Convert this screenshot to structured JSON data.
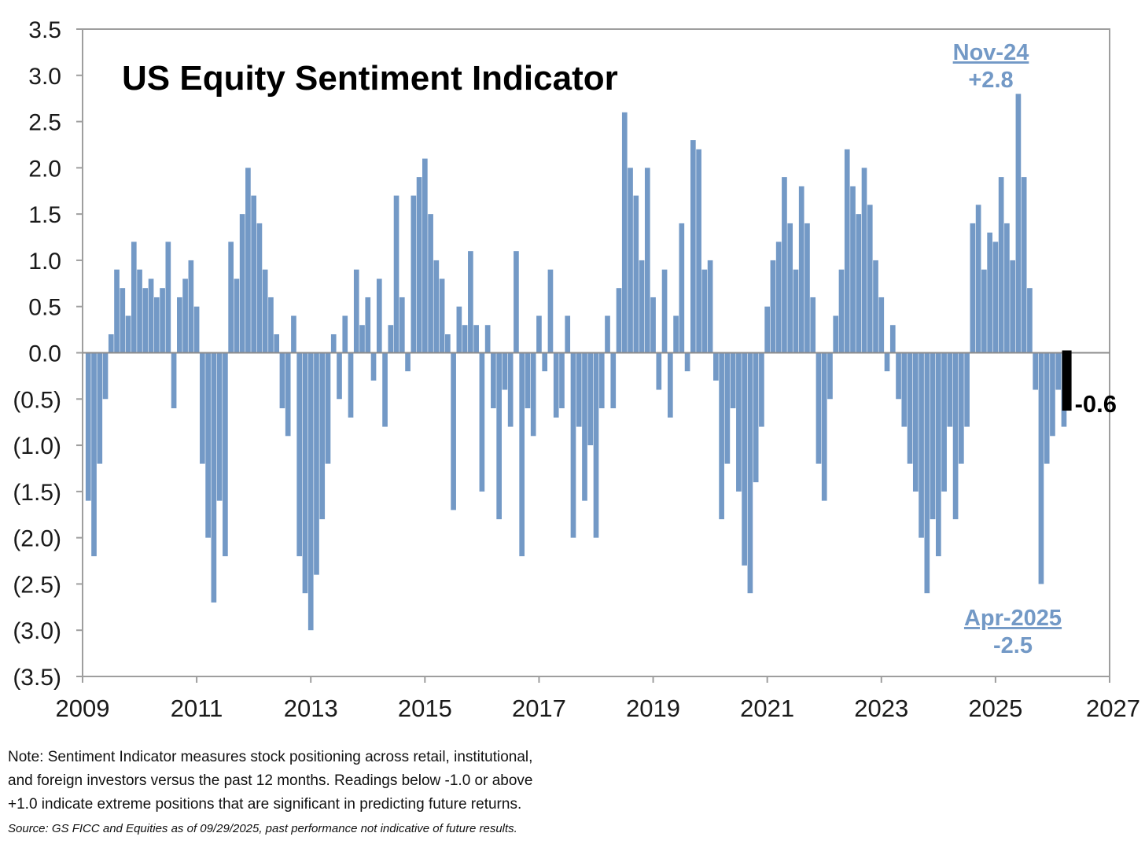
{
  "chart_data": {
    "type": "bar",
    "title": "US Equity Sentiment Indicator",
    "xlabel": "",
    "ylabel": "",
    "xlim": [
      2009,
      2027
    ],
    "ylim": [
      -3.5,
      3.5
    ],
    "x_ticks": [
      {
        "value": 2009,
        "label": "2009"
      },
      {
        "value": 2011,
        "label": "2011"
      },
      {
        "value": 2013,
        "label": "2013"
      },
      {
        "value": 2015,
        "label": "2015"
      },
      {
        "value": 2017,
        "label": "2017"
      },
      {
        "value": 2019,
        "label": "2019"
      },
      {
        "value": 2021,
        "label": "2021"
      },
      {
        "value": 2023,
        "label": "2023"
      },
      {
        "value": 2025,
        "label": "2025"
      },
      {
        "value": 2027,
        "label": "2027"
      }
    ],
    "y_ticks": [
      {
        "value": 3.5,
        "label": "3.5"
      },
      {
        "value": 3.0,
        "label": "3.0"
      },
      {
        "value": 2.5,
        "label": "2.5"
      },
      {
        "value": 2.0,
        "label": "2.0"
      },
      {
        "value": 1.5,
        "label": "1.5"
      },
      {
        "value": 1.0,
        "label": "1.0"
      },
      {
        "value": 0.5,
        "label": "0.5"
      },
      {
        "value": 0.0,
        "label": "0.0"
      },
      {
        "value": -0.5,
        "label": "(0.5)"
      },
      {
        "value": -1.0,
        "label": "(1.0)"
      },
      {
        "value": -1.5,
        "label": "(1.5)"
      },
      {
        "value": -2.0,
        "label": "(2.0)"
      },
      {
        "value": -2.5,
        "label": "(2.5)"
      },
      {
        "value": -3.0,
        "label": "(3.0)"
      },
      {
        "value": -3.5,
        "label": "(3.5)"
      }
    ],
    "series": [
      {
        "name": "US Equity Sentiment Indicator",
        "color": "#7399c6",
        "points": [
          [
            2009.1,
            -1.6
          ],
          [
            2009.2,
            -2.2
          ],
          [
            2009.3,
            -1.2
          ],
          [
            2009.4,
            -0.5
          ],
          [
            2009.5,
            0.2
          ],
          [
            2009.6,
            0.9
          ],
          [
            2009.7,
            0.7
          ],
          [
            2009.8,
            0.4
          ],
          [
            2009.9,
            1.2
          ],
          [
            2010.0,
            0.9
          ],
          [
            2010.1,
            0.7
          ],
          [
            2010.2,
            0.8
          ],
          [
            2010.3,
            0.6
          ],
          [
            2010.4,
            0.7
          ],
          [
            2010.5,
            1.2
          ],
          [
            2010.6,
            -0.6
          ],
          [
            2010.7,
            0.6
          ],
          [
            2010.8,
            0.8
          ],
          [
            2010.9,
            1.0
          ],
          [
            2011.0,
            0.5
          ],
          [
            2011.1,
            -1.2
          ],
          [
            2011.2,
            -2.0
          ],
          [
            2011.3,
            -2.7
          ],
          [
            2011.4,
            -1.6
          ],
          [
            2011.5,
            -2.2
          ],
          [
            2011.6,
            1.2
          ],
          [
            2011.7,
            0.8
          ],
          [
            2011.8,
            1.5
          ],
          [
            2011.9,
            2.0
          ],
          [
            2012.0,
            1.7
          ],
          [
            2012.1,
            1.4
          ],
          [
            2012.2,
            0.9
          ],
          [
            2012.3,
            0.6
          ],
          [
            2012.4,
            0.2
          ],
          [
            2012.5,
            -0.6
          ],
          [
            2012.6,
            -0.9
          ],
          [
            2012.7,
            0.4
          ],
          [
            2012.8,
            -2.2
          ],
          [
            2012.9,
            -2.6
          ],
          [
            2013.0,
            -3.0
          ],
          [
            2013.1,
            -2.4
          ],
          [
            2013.2,
            -1.8
          ],
          [
            2013.3,
            -1.2
          ],
          [
            2013.4,
            0.2
          ],
          [
            2013.5,
            -0.5
          ],
          [
            2013.6,
            0.4
          ],
          [
            2013.7,
            -0.7
          ],
          [
            2013.8,
            0.9
          ],
          [
            2013.9,
            0.3
          ],
          [
            2014.0,
            0.6
          ],
          [
            2014.1,
            -0.3
          ],
          [
            2014.2,
            0.8
          ],
          [
            2014.3,
            -0.8
          ],
          [
            2014.4,
            0.3
          ],
          [
            2014.5,
            1.7
          ],
          [
            2014.6,
            0.6
          ],
          [
            2014.7,
            -0.2
          ],
          [
            2014.8,
            1.7
          ],
          [
            2014.9,
            1.9
          ],
          [
            2015.0,
            2.1
          ],
          [
            2015.1,
            1.5
          ],
          [
            2015.2,
            1.0
          ],
          [
            2015.3,
            0.8
          ],
          [
            2015.4,
            0.2
          ],
          [
            2015.5,
            -1.7
          ],
          [
            2015.6,
            0.5
          ],
          [
            2015.7,
            0.3
          ],
          [
            2015.8,
            1.1
          ],
          [
            2015.9,
            0.3
          ],
          [
            2016.0,
            -1.5
          ],
          [
            2016.1,
            0.3
          ],
          [
            2016.2,
            -0.6
          ],
          [
            2016.3,
            -1.8
          ],
          [
            2016.4,
            -0.4
          ],
          [
            2016.5,
            -0.8
          ],
          [
            2016.6,
            1.1
          ],
          [
            2016.7,
            -2.2
          ],
          [
            2016.8,
            -0.6
          ],
          [
            2016.9,
            -0.9
          ],
          [
            2017.0,
            0.4
          ],
          [
            2017.1,
            -0.2
          ],
          [
            2017.2,
            0.9
          ],
          [
            2017.3,
            -0.7
          ],
          [
            2017.4,
            -0.6
          ],
          [
            2017.5,
            0.4
          ],
          [
            2017.6,
            -2.0
          ],
          [
            2017.7,
            -0.8
          ],
          [
            2017.8,
            -1.6
          ],
          [
            2017.9,
            -1.0
          ],
          [
            2018.0,
            -2.0
          ],
          [
            2018.1,
            -0.6
          ],
          [
            2018.2,
            0.4
          ],
          [
            2018.3,
            -0.6
          ],
          [
            2018.4,
            0.7
          ],
          [
            2018.5,
            2.6
          ],
          [
            2018.6,
            2.0
          ],
          [
            2018.7,
            1.7
          ],
          [
            2018.8,
            1.0
          ],
          [
            2018.9,
            2.0
          ],
          [
            2019.0,
            0.6
          ],
          [
            2019.1,
            -0.4
          ],
          [
            2019.2,
            0.9
          ],
          [
            2019.3,
            -0.7
          ],
          [
            2019.4,
            0.4
          ],
          [
            2019.5,
            1.4
          ],
          [
            2019.6,
            -0.2
          ],
          [
            2019.7,
            2.3
          ],
          [
            2019.8,
            2.2
          ],
          [
            2019.9,
            0.9
          ],
          [
            2020.0,
            1.0
          ],
          [
            2020.1,
            -0.3
          ],
          [
            2020.2,
            -1.8
          ],
          [
            2020.3,
            -1.2
          ],
          [
            2020.4,
            -0.6
          ],
          [
            2020.5,
            -1.5
          ],
          [
            2020.6,
            -2.3
          ],
          [
            2020.7,
            -2.6
          ],
          [
            2020.8,
            -1.4
          ],
          [
            2020.9,
            -0.8
          ],
          [
            2021.0,
            0.5
          ],
          [
            2021.1,
            1.0
          ],
          [
            2021.2,
            1.2
          ],
          [
            2021.3,
            1.9
          ],
          [
            2021.4,
            1.4
          ],
          [
            2021.5,
            0.9
          ],
          [
            2021.6,
            1.8
          ],
          [
            2021.7,
            1.4
          ],
          [
            2021.8,
            0.6
          ],
          [
            2021.9,
            -1.2
          ],
          [
            2022.0,
            -1.6
          ],
          [
            2022.1,
            -0.5
          ],
          [
            2022.2,
            0.4
          ],
          [
            2022.3,
            0.9
          ],
          [
            2022.4,
            2.2
          ],
          [
            2022.5,
            1.8
          ],
          [
            2022.6,
            1.5
          ],
          [
            2022.7,
            2.0
          ],
          [
            2022.8,
            1.6
          ],
          [
            2022.9,
            1.0
          ],
          [
            2023.0,
            0.6
          ],
          [
            2023.1,
            -0.2
          ],
          [
            2023.2,
            0.3
          ],
          [
            2023.3,
            -0.5
          ],
          [
            2023.4,
            -0.8
          ],
          [
            2023.5,
            -1.2
          ],
          [
            2023.6,
            -1.5
          ],
          [
            2023.7,
            -2.0
          ],
          [
            2023.8,
            -2.6
          ],
          [
            2023.9,
            -1.8
          ],
          [
            2024.0,
            -2.2
          ],
          [
            2024.1,
            -1.5
          ],
          [
            2024.2,
            -0.8
          ],
          [
            2024.3,
            -1.8
          ],
          [
            2024.4,
            -1.2
          ],
          [
            2024.5,
            -0.8
          ],
          [
            2024.6,
            1.4
          ],
          [
            2024.7,
            1.6
          ],
          [
            2024.8,
            0.9
          ],
          [
            2024.9,
            1.3
          ],
          [
            2025.0,
            1.2
          ],
          [
            2025.1,
            1.9
          ],
          [
            2025.2,
            1.4
          ],
          [
            2025.3,
            1.0
          ],
          [
            2025.4,
            2.8
          ],
          [
            2025.5,
            1.9
          ],
          [
            2025.6,
            0.7
          ],
          [
            2025.7,
            -0.4
          ],
          [
            2025.8,
            -2.5
          ],
          [
            2025.9,
            -1.2
          ],
          [
            2026.0,
            -0.9
          ],
          [
            2026.1,
            -0.4
          ],
          [
            2026.2,
            -0.8
          ]
        ]
      }
    ],
    "current_reading": {
      "date": 2026.25,
      "value": -0.6,
      "label": "-0.6",
      "color": "#000000"
    },
    "annotations": [
      {
        "label": "Nov-24",
        "value_label": "+2.8",
        "position": "top-right",
        "color": "#7399c6"
      },
      {
        "label": "Apr-2025",
        "value_label": "-2.5",
        "position": "bottom-right",
        "color": "#7399c6"
      }
    ]
  },
  "footer": {
    "note_lines": [
      "Note: Sentiment Indicator measures stock positioning across retail, institutional,",
      "and foreign investors versus the past 12 months. Readings below -1.0 or above",
      "+1.0 indicate extreme positions that are significant in predicting future returns."
    ],
    "source": "Source: GS FICC and Equities as of 09/29/2025, past performance not indicative of future results."
  }
}
